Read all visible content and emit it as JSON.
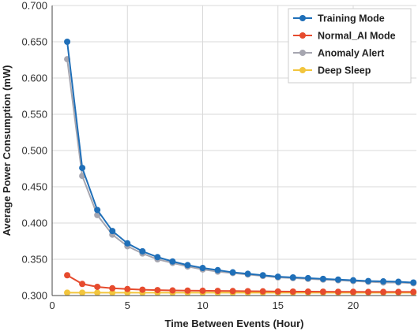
{
  "chart_data": {
    "type": "line",
    "xlabel": "Time Between Events (Hour)",
    "ylabel": "Average Power Consumption (mW)",
    "xlim": [
      0,
      24.2
    ],
    "ylim": [
      0.3,
      0.7
    ],
    "x_ticks": [
      0,
      5,
      10,
      15,
      20
    ],
    "y_ticks": [
      0.3,
      0.35,
      0.4,
      0.45,
      0.5,
      0.55,
      0.6,
      0.65,
      0.7
    ],
    "y_tick_labels": [
      "0.300",
      "0.350",
      "0.400",
      "0.450",
      "0.500",
      "0.550",
      "0.600",
      "0.650",
      "0.700"
    ],
    "grid": true,
    "legend_position": "top-right",
    "x": [
      1,
      2,
      3,
      4,
      5,
      6,
      7,
      8,
      9,
      10,
      11,
      12,
      13,
      14,
      15,
      16,
      17,
      18,
      19,
      20,
      21,
      22,
      23,
      24
    ],
    "series": [
      {
        "name": "Training Mode",
        "color": "#1f6fb8",
        "values": [
          0.65,
          0.476,
          0.418,
          0.389,
          0.372,
          0.361,
          0.353,
          0.347,
          0.342,
          0.338,
          0.335,
          0.332,
          0.33,
          0.328,
          0.326,
          0.325,
          0.324,
          0.323,
          0.322,
          0.321,
          0.32,
          0.3195,
          0.319,
          0.318
        ]
      },
      {
        "name": "Normal_AI Mode",
        "color": "#e64b2e",
        "values": [
          0.328,
          0.316,
          0.312,
          0.31,
          0.309,
          0.308,
          0.3075,
          0.307,
          0.3068,
          0.3066,
          0.3064,
          0.3062,
          0.306,
          0.3058,
          0.3056,
          0.3055,
          0.3054,
          0.3053,
          0.3052,
          0.3051,
          0.305,
          0.305,
          0.305,
          0.305
        ]
      },
      {
        "name": "Anomaly Alert",
        "color": "#a6a6b0",
        "values": [
          0.626,
          0.465,
          0.411,
          0.384,
          0.368,
          0.358,
          0.35,
          0.345,
          0.34,
          0.336,
          0.333,
          0.331,
          0.329,
          0.327,
          0.325,
          0.324,
          0.323,
          0.322,
          0.321,
          0.32,
          0.319,
          0.318,
          0.318,
          0.317
        ]
      },
      {
        "name": "Deep Sleep",
        "color": "#f2c53d",
        "values": [
          0.304,
          0.304,
          0.304,
          0.304,
          0.304,
          0.304,
          0.304,
          0.304,
          0.304,
          0.304,
          0.304,
          0.304,
          0.304,
          0.304,
          0.304,
          0.304,
          0.304,
          0.304,
          0.304,
          0.304,
          0.304,
          0.304,
          0.304,
          0.304
        ]
      }
    ]
  }
}
